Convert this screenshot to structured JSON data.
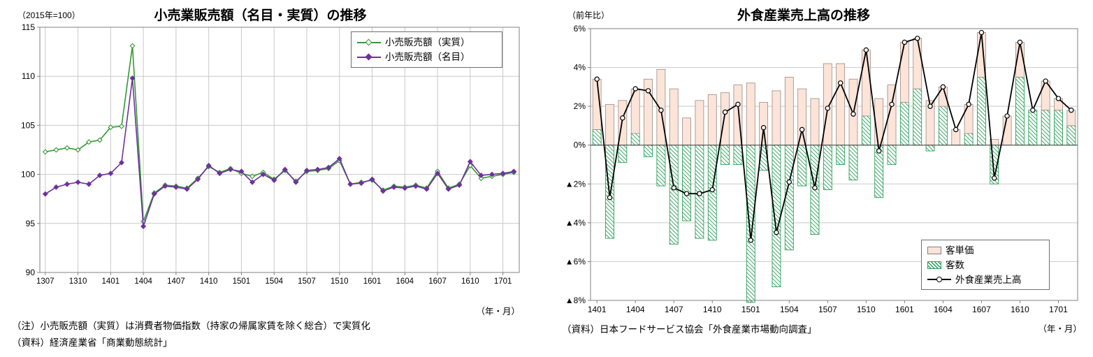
{
  "left_chart": {
    "title": "小売業販売額（名目・実質）の推移",
    "unit_label": "（2015年=100）",
    "x_axis_unit": "（年・月）",
    "note1": "（注）小売販売額（実質）は消費者物価指数（持家の帰属家賃を除く総合）で実質化",
    "note2": "（資料）経済産業省「商業動態統計」",
    "legend": {
      "real": "小売販売額（実質）",
      "nominal": "小売販売額（名目）"
    },
    "colors": {
      "real": "#339933",
      "nominal": "#7030a0",
      "grid": "#c9c9c9",
      "axis": "#808080"
    },
    "chart_data": {
      "type": "line",
      "ylim": [
        90,
        115
      ],
      "yticks": [
        90,
        95,
        100,
        105,
        110,
        115
      ],
      "grid": true,
      "legend_position": "top-right-inside",
      "x": [
        "1307",
        "1308",
        "1309",
        "1310",
        "1311",
        "1312",
        "1401",
        "1402",
        "1403",
        "1404",
        "1405",
        "1406",
        "1407",
        "1408",
        "1409",
        "1410",
        "1411",
        "1412",
        "1501",
        "1502",
        "1503",
        "1504",
        "1505",
        "1506",
        "1507",
        "1508",
        "1509",
        "1510",
        "1511",
        "1512",
        "1601",
        "1602",
        "1603",
        "1604",
        "1605",
        "1606",
        "1607",
        "1608",
        "1609",
        "1610",
        "1611",
        "1612",
        "1701",
        "1702"
      ],
      "xticks": [
        "1307",
        "1310",
        "1401",
        "1404",
        "1407",
        "1410",
        "1501",
        "1504",
        "1507",
        "1510",
        "1601",
        "1604",
        "1607",
        "1610",
        "1701"
      ],
      "series": [
        {
          "name": "小売販売額（実質）",
          "key": "real",
          "values": [
            102.3,
            102.5,
            102.7,
            102.5,
            103.3,
            103.5,
            104.8,
            104.9,
            113.1,
            95.2,
            98.1,
            98.9,
            98.8,
            98.6,
            99.6,
            100.8,
            100.2,
            100.6,
            100.1,
            99.8,
            100.2,
            99.5,
            100.4,
            99.3,
            100.3,
            100.4,
            100.6,
            101.4,
            99.0,
            99.2,
            99.4,
            98.4,
            98.8,
            98.7,
            98.9,
            98.6,
            100.3,
            98.6,
            99.0,
            100.9,
            99.6,
            99.8,
            100.0,
            100.2
          ]
        },
        {
          "name": "小売販売額（名目）",
          "key": "nominal",
          "values": [
            98.0,
            98.7,
            99.0,
            99.2,
            99.0,
            99.9,
            100.1,
            101.2,
            109.8,
            94.7,
            98.0,
            98.8,
            98.7,
            98.5,
            99.5,
            100.9,
            100.1,
            100.5,
            100.3,
            99.2,
            100.0,
            99.4,
            100.5,
            99.2,
            100.4,
            100.5,
            100.7,
            101.6,
            99.0,
            99.1,
            99.5,
            98.3,
            98.7,
            98.6,
            98.8,
            98.5,
            100.1,
            98.5,
            98.9,
            101.3,
            99.9,
            100.0,
            100.1,
            100.3
          ]
        }
      ]
    }
  },
  "right_chart": {
    "title": "外食産業売上高の推移",
    "unit_label": "（前年比）",
    "x_axis_unit": "（年・月）",
    "source": "（資料）日本フードサービス協会「外食産業市場動向調査」",
    "legend": {
      "price": "客単価",
      "count": "客数",
      "total": "外食産業売上高"
    },
    "colors": {
      "price_fill": "#fce4d9",
      "price_border": "#9a8b83",
      "count": "#2ca05a",
      "line": "#000000",
      "grid": "#c9c9c9",
      "axis": "#808080"
    },
    "chart_data": {
      "type": "bar",
      "subtype": "stacked-bar-with-line",
      "ylim": [
        -8,
        6
      ],
      "yticks": [
        6,
        4,
        2,
        0,
        -2,
        -4,
        -6,
        -8
      ],
      "ytick_labels": [
        "6%",
        "4%",
        "2%",
        "0%",
        "▲2%",
        "▲4%",
        "▲6%",
        "▲8%"
      ],
      "grid": true,
      "legend_position": "bottom-right-inside",
      "categories": [
        "1401",
        "1402",
        "1403",
        "1404",
        "1405",
        "1406",
        "1407",
        "1408",
        "1409",
        "1410",
        "1411",
        "1412",
        "1501",
        "1502",
        "1503",
        "1504",
        "1505",
        "1506",
        "1507",
        "1508",
        "1509",
        "1510",
        "1511",
        "1512",
        "1601",
        "1602",
        "1603",
        "1604",
        "1605",
        "1606",
        "1607",
        "1608",
        "1609",
        "1610",
        "1611",
        "1612",
        "1701",
        "1702"
      ],
      "xticks": [
        "1401",
        "1404",
        "1407",
        "1410",
        "1501",
        "1504",
        "1507",
        "1510",
        "1601",
        "1604",
        "1607",
        "1610",
        "1701"
      ],
      "series": [
        {
          "name": "客単価",
          "key": "price",
          "type": "bar",
          "values": [
            2.6,
            2.1,
            2.3,
            2.3,
            3.4,
            3.9,
            2.9,
            1.4,
            2.3,
            2.6,
            2.7,
            3.1,
            3.2,
            2.2,
            2.8,
            3.5,
            2.9,
            2.4,
            4.2,
            4.2,
            3.4,
            3.4,
            2.4,
            3.1,
            3.1,
            2.6,
            2.3,
            1.0,
            0.8,
            1.5,
            2.3,
            0.3,
            1.5,
            1.8,
            0.0,
            1.5,
            0.6,
            0.8
          ]
        },
        {
          "name": "客数",
          "key": "count",
          "type": "bar",
          "values": [
            0.8,
            -4.8,
            -0.9,
            0.6,
            -0.6,
            -2.1,
            -5.1,
            -3.9,
            -4.8,
            -4.9,
            -1.0,
            -1.0,
            -8.1,
            -1.3,
            -7.3,
            -5.4,
            -2.1,
            -4.6,
            -2.3,
            -1.0,
            -1.8,
            1.5,
            -2.7,
            -1.0,
            2.2,
            2.9,
            -0.3,
            2.0,
            0.0,
            0.6,
            3.5,
            -2.0,
            0.0,
            3.5,
            1.8,
            1.8,
            1.8,
            1.0
          ]
        },
        {
          "name": "外食産業売上高",
          "key": "total",
          "type": "line",
          "values": [
            3.4,
            -2.7,
            1.4,
            2.9,
            2.8,
            1.8,
            -2.2,
            -2.5,
            -2.5,
            -2.3,
            1.7,
            2.1,
            -4.9,
            0.9,
            -4.5,
            -1.9,
            0.8,
            -2.2,
            1.9,
            3.2,
            1.6,
            4.9,
            -0.3,
            2.1,
            5.3,
            5.5,
            2.0,
            3.0,
            0.8,
            2.1,
            5.8,
            -1.7,
            1.5,
            5.3,
            1.8,
            3.3,
            2.4,
            1.8
          ]
        }
      ]
    }
  }
}
